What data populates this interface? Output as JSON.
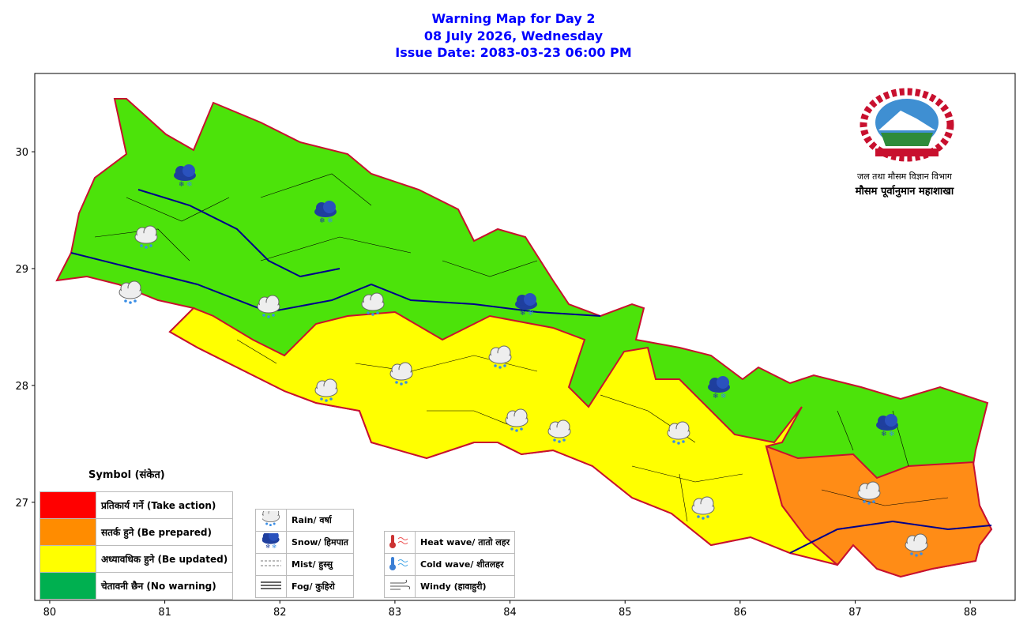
{
  "header": {
    "title_lines": [
      "Warning Map for Day 2",
      "08 July 2026, Wednesday",
      "Issue Date: 2083-03-23 06:00 PM"
    ]
  },
  "map": {
    "xlim": [
      79.87,
      88.39
    ],
    "ylim": [
      26.16,
      30.67
    ],
    "xticks": [
      80,
      81,
      82,
      83,
      84,
      85,
      86,
      87,
      88
    ],
    "yticks": [
      27,
      28,
      29,
      30
    ]
  },
  "logo": {
    "line1": "जल तथा मौसम विज्ञान विभाग",
    "line2": "मौसम पूर्वानुमान महाशाखा"
  },
  "legend": {
    "title": "Symbol (संकेत)",
    "levels": [
      {
        "label": "प्रतिकार्य गर्ने (Take action)",
        "color": "#ff0000"
      },
      {
        "label": "सतर्क हुने (Be prepared)",
        "color": "#ff8c00"
      },
      {
        "label": "अध्यावधिक हुने (Be updated)",
        "color": "#ffff00"
      },
      {
        "label": "चेतावनी छैन (No warning)",
        "color": "#00b050"
      }
    ],
    "symbols": [
      "Rain/ वर्षा",
      "Snow/ हिमपात",
      "Mist/ हुस्सु",
      "Fog/ कुहिरो"
    ],
    "hazards": [
      "Heat wave/ तातो लहर",
      "Cold wave/ शीतलहर",
      "Windy (हावाहुरी)"
    ]
  }
}
